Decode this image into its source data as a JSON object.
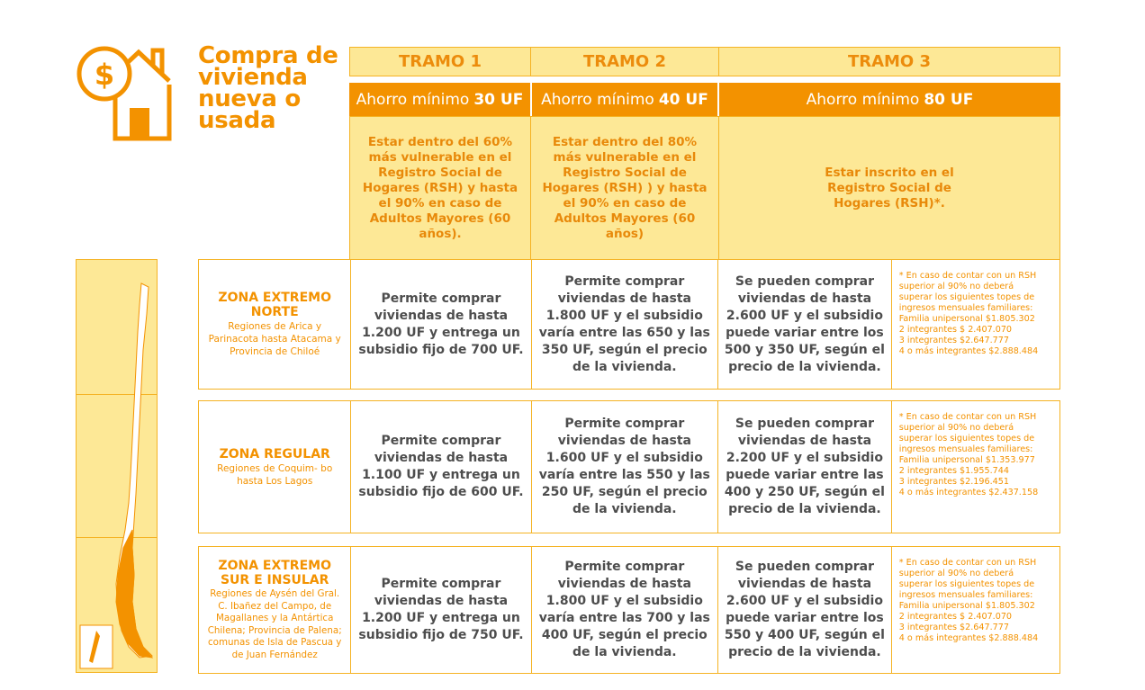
{
  "title_lines": [
    "Compra de",
    "vivienda",
    "nueva o",
    "usada"
  ],
  "colors": {
    "accent": "#f39200",
    "light_fill": "#fde896",
    "border": "#f5b324",
    "body_text": "#4d4d4d"
  },
  "icons": {
    "logo": "house-dollar-icon",
    "map": "chile-map-icon"
  },
  "tramos": [
    {
      "label": "TRAMO 1",
      "ahorro_prefix": "Ahorro mínimo",
      "ahorro_value": "30 UF",
      "requisito": "Estar dentro del 60% más vulnerable en el Registro Social de Hogares (RSH) y hasta el 90% en caso de Adultos Mayores (60 años)."
    },
    {
      "label": "TRAMO 2",
      "ahorro_prefix": "Ahorro mínimo",
      "ahorro_value": "40 UF",
      "requisito": "Estar dentro del 80% más vulnerable en el Registro Social de Hogares (RSH) ) y hasta el 90% en caso de Adultos Mayores (60 años)"
    },
    {
      "label": "TRAMO 3",
      "ahorro_prefix": "Ahorro mínimo",
      "ahorro_value": "80 UF",
      "requisito": "Estar inscrito en el Registro Social de Hogares (RSH)*."
    }
  ],
  "zones": [
    {
      "name": "ZONA EXTREMO NORTE",
      "desc": "Regiones de Arica y Parinacota hasta Atacama y Provincia de Chiloé",
      "t1": "Permite comprar viviendas de hasta 1.200 UF y entrega un subsidio fijo de 700 UF.",
      "t2": "Permite comprar viviendas de hasta 1.800 UF y el subsidio varía entre las 650 y las 350 UF, según el precio de la vivienda.",
      "t3": "Se pueden comprar viviendas de hasta 2.600 UF y el subsidio puede variar entre los 500 y 350 UF, según el precio de la vivienda.",
      "note": [
        "* En caso de contar con un RSH",
        "superior al 90% no deberá",
        "superar los siguientes topes de",
        "ingresos mensuales familiares:",
        "Familia unipersonal $1.805.302",
        "2 integrantes $ 2.407.070",
        "3 integrantes $2.647.777",
        "4 o más integrantes $2.888.484"
      ]
    },
    {
      "name": "ZONA REGULAR",
      "desc": "Regiones de Coquim- bo hasta Los Lagos",
      "t1": "Permite comprar viviendas de hasta 1.100 UF y entrega un subsidio fijo de 600 UF.",
      "t2": "Permite comprar viviendas de hasta 1.600 UF y el subsidio varía entre las 550 y las 250 UF, según el precio de la vivienda.",
      "t3": "Se pueden comprar viviendas de hasta 2.200 UF y el subsidio puede variar entre las 400 y 250 UF, según el precio de la vivienda.",
      "note": [
        "* En caso de contar con un RSH",
        "superior al 90% no deberá",
        "superar los siguientes topes de",
        "ingresos mensuales familiares:",
        "Familia unipersonal $1.353.977",
        "2 integrantes $1.955.744",
        "3 integrantes $2.196.451",
        "4 o más integrantes $2.437.158"
      ]
    },
    {
      "name": "ZONA EXTREMO SUR E INSULAR",
      "desc": "Regiones de Aysén del Gral. C. Ibañez del Campo, de Magallanes y la Antártica Chilena; Provincia de Palena; comunas de Isla de Pascua y de Juan Fernández",
      "t1": "Permite comprar viviendas de hasta 1.200 UF y entrega un subsidio fijo de 750 UF.",
      "t2": "Permite comprar viviendas de hasta 1.800 UF y el subsidio varía entre las 700 y las 400 UF, según el precio de la vivienda.",
      "t3": "Se pueden comprar viviendas de hasta 2.600 UF y el subsidio puede variar entre los 550 y 400 UF, según el precio de la vivienda.",
      "note": [
        "* En caso de contar con un RSH",
        "superior al 90% no deberá",
        "superar los siguientes topes de",
        "ingresos mensuales familiares:",
        "Familia unipersonal $1.805.302",
        "2 integrantes $ 2.407.070",
        "3 integrantes $2.647.777",
        "4 o más integrantes $2.888.484"
      ]
    }
  ]
}
